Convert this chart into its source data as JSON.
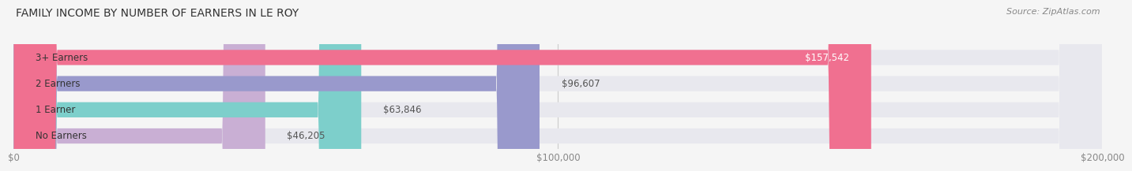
{
  "title": "FAMILY INCOME BY NUMBER OF EARNERS IN LE ROY",
  "source": "Source: ZipAtlas.com",
  "categories": [
    "No Earners",
    "1 Earner",
    "2 Earners",
    "3+ Earners"
  ],
  "values": [
    46205,
    63846,
    96607,
    157542
  ],
  "bar_colors": [
    "#c9afd4",
    "#7dcfcb",
    "#9999cc",
    "#f07090"
  ],
  "bar_bg_color": "#e8e8ee",
  "value_labels": [
    "$46,205",
    "$63,846",
    "$96,607",
    "$157,542"
  ],
  "xlim": [
    0,
    200000
  ],
  "xticks": [
    0,
    100000,
    200000
  ],
  "xtick_labels": [
    "$0",
    "$100,000",
    "$200,000"
  ],
  "title_fontsize": 10,
  "label_fontsize": 8.5,
  "value_fontsize": 8.5,
  "source_fontsize": 8,
  "bar_height": 0.58,
  "background_color": "#f5f5f5"
}
